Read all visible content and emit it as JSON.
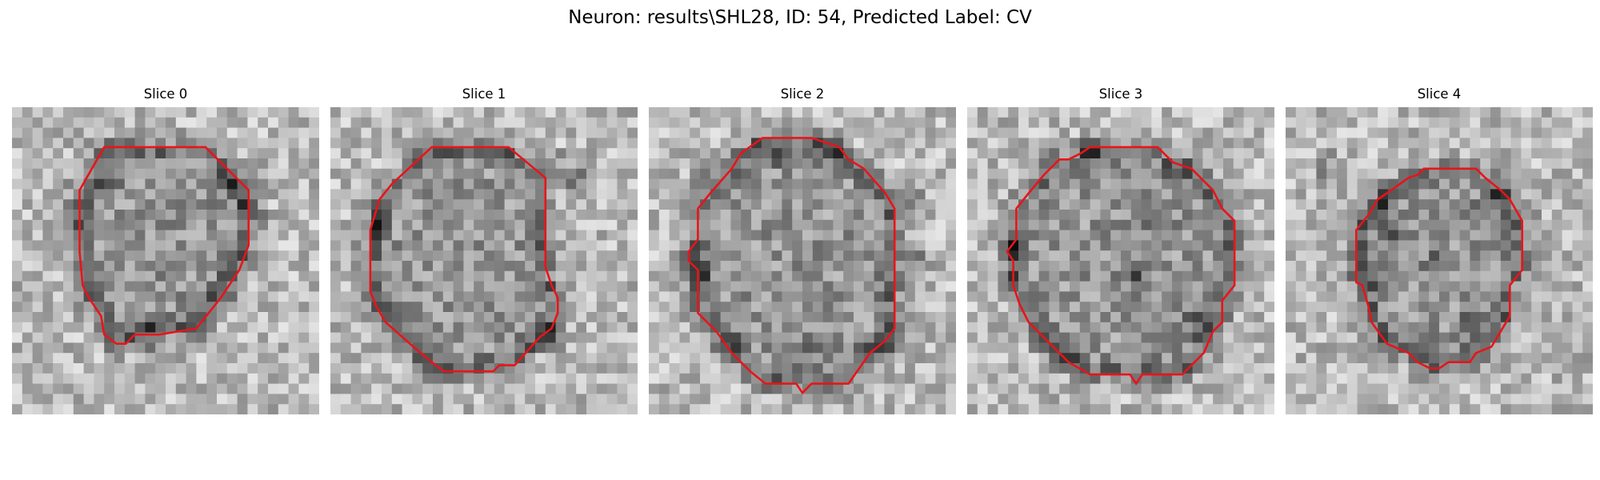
{
  "figure": {
    "title": "Neuron: results\\SHL28, ID: 54, Predicted Label: CV"
  },
  "colors": {
    "contour": "#e8141a"
  },
  "slices": [
    {
      "title": "Slice 0",
      "contour": [
        [
          0.3,
          0.13
        ],
        [
          0.63,
          0.13
        ],
        [
          0.77,
          0.27
        ],
        [
          0.77,
          0.45
        ],
        [
          0.74,
          0.53
        ],
        [
          0.68,
          0.62
        ],
        [
          0.6,
          0.72
        ],
        [
          0.48,
          0.74
        ],
        [
          0.4,
          0.74
        ],
        [
          0.37,
          0.77
        ],
        [
          0.34,
          0.77
        ],
        [
          0.3,
          0.74
        ],
        [
          0.29,
          0.68
        ],
        [
          0.25,
          0.62
        ],
        [
          0.23,
          0.58
        ],
        [
          0.22,
          0.47
        ],
        [
          0.22,
          0.27
        ]
      ],
      "dark_spots": [
        [
          0.22,
          0.35
        ],
        [
          0.78,
          0.33
        ],
        [
          0.7,
          0.25
        ],
        [
          0.3,
          0.26
        ],
        [
          0.25,
          0.6
        ],
        [
          0.68,
          0.6
        ],
        [
          0.45,
          0.74
        ]
      ]
    },
    {
      "title": "Slice 1",
      "contour": [
        [
          0.33,
          0.13
        ],
        [
          0.58,
          0.13
        ],
        [
          0.7,
          0.23
        ],
        [
          0.7,
          0.52
        ],
        [
          0.72,
          0.58
        ],
        [
          0.74,
          0.62
        ],
        [
          0.74,
          0.67
        ],
        [
          0.72,
          0.72
        ],
        [
          0.68,
          0.75
        ],
        [
          0.6,
          0.84
        ],
        [
          0.55,
          0.84
        ],
        [
          0.53,
          0.86
        ],
        [
          0.37,
          0.86
        ],
        [
          0.33,
          0.83
        ],
        [
          0.27,
          0.78
        ],
        [
          0.18,
          0.7
        ],
        [
          0.15,
          0.65
        ],
        [
          0.13,
          0.6
        ],
        [
          0.13,
          0.4
        ],
        [
          0.16,
          0.3
        ],
        [
          0.2,
          0.25
        ]
      ],
      "dark_spots": [
        [
          0.82,
          0.25
        ],
        [
          0.76,
          0.2
        ],
        [
          0.15,
          0.38
        ],
        [
          0.2,
          0.7
        ],
        [
          0.72,
          0.75
        ],
        [
          0.3,
          0.85
        ]
      ]
    },
    {
      "title": "Slice 2",
      "contour": [
        [
          0.37,
          0.1
        ],
        [
          0.53,
          0.1
        ],
        [
          0.62,
          0.13
        ],
        [
          0.65,
          0.17
        ],
        [
          0.7,
          0.2
        ],
        [
          0.77,
          0.28
        ],
        [
          0.8,
          0.33
        ],
        [
          0.8,
          0.72
        ],
        [
          0.77,
          0.76
        ],
        [
          0.72,
          0.8
        ],
        [
          0.65,
          0.9
        ],
        [
          0.53,
          0.9
        ],
        [
          0.5,
          0.93
        ],
        [
          0.48,
          0.9
        ],
        [
          0.38,
          0.9
        ],
        [
          0.33,
          0.86
        ],
        [
          0.27,
          0.8
        ],
        [
          0.22,
          0.73
        ],
        [
          0.16,
          0.67
        ],
        [
          0.16,
          0.53
        ],
        [
          0.13,
          0.5
        ],
        [
          0.13,
          0.47
        ],
        [
          0.16,
          0.43
        ],
        [
          0.16,
          0.33
        ],
        [
          0.2,
          0.28
        ],
        [
          0.27,
          0.2
        ],
        [
          0.3,
          0.15
        ]
      ],
      "dark_spots": [
        [
          0.2,
          0.25
        ],
        [
          0.85,
          0.3
        ],
        [
          0.15,
          0.55
        ],
        [
          0.88,
          0.5
        ],
        [
          0.25,
          0.75
        ],
        [
          0.78,
          0.78
        ],
        [
          0.5,
          0.8
        ],
        [
          0.4,
          0.15
        ],
        [
          0.6,
          0.15
        ]
      ]
    },
    {
      "title": "Slice 3",
      "contour": [
        [
          0.3,
          0.17
        ],
        [
          0.33,
          0.17
        ],
        [
          0.37,
          0.15
        ],
        [
          0.4,
          0.13
        ],
        [
          0.62,
          0.13
        ],
        [
          0.67,
          0.18
        ],
        [
          0.73,
          0.2
        ],
        [
          0.8,
          0.27
        ],
        [
          0.83,
          0.33
        ],
        [
          0.87,
          0.37
        ],
        [
          0.87,
          0.58
        ],
        [
          0.83,
          0.63
        ],
        [
          0.83,
          0.7
        ],
        [
          0.8,
          0.73
        ],
        [
          0.77,
          0.8
        ],
        [
          0.7,
          0.87
        ],
        [
          0.57,
          0.87
        ],
        [
          0.55,
          0.9
        ],
        [
          0.53,
          0.87
        ],
        [
          0.4,
          0.87
        ],
        [
          0.33,
          0.83
        ],
        [
          0.28,
          0.78
        ],
        [
          0.2,
          0.7
        ],
        [
          0.17,
          0.64
        ],
        [
          0.15,
          0.58
        ],
        [
          0.15,
          0.5
        ],
        [
          0.13,
          0.47
        ],
        [
          0.16,
          0.43
        ],
        [
          0.16,
          0.33
        ],
        [
          0.2,
          0.28
        ],
        [
          0.25,
          0.22
        ]
      ],
      "dark_spots": [
        [
          0.4,
          0.15
        ],
        [
          0.7,
          0.2
        ],
        [
          0.15,
          0.45
        ],
        [
          0.87,
          0.42
        ],
        [
          0.25,
          0.75
        ],
        [
          0.33,
          0.82
        ],
        [
          0.75,
          0.7
        ],
        [
          0.62,
          0.4
        ],
        [
          0.55,
          0.55
        ]
      ]
    },
    {
      "title": "Slice 4",
      "contour": [
        [
          0.4,
          0.23
        ],
        [
          0.43,
          0.22
        ],
        [
          0.45,
          0.2
        ],
        [
          0.62,
          0.2
        ],
        [
          0.65,
          0.23
        ],
        [
          0.7,
          0.27
        ],
        [
          0.73,
          0.3
        ],
        [
          0.77,
          0.37
        ],
        [
          0.77,
          0.53
        ],
        [
          0.73,
          0.58
        ],
        [
          0.73,
          0.68
        ],
        [
          0.7,
          0.73
        ],
        [
          0.67,
          0.78
        ],
        [
          0.62,
          0.8
        ],
        [
          0.6,
          0.83
        ],
        [
          0.53,
          0.83
        ],
        [
          0.5,
          0.85
        ],
        [
          0.47,
          0.85
        ],
        [
          0.43,
          0.83
        ],
        [
          0.4,
          0.8
        ],
        [
          0.33,
          0.77
        ],
        [
          0.28,
          0.7
        ],
        [
          0.27,
          0.65
        ],
        [
          0.25,
          0.58
        ],
        [
          0.23,
          0.57
        ],
        [
          0.23,
          0.4
        ],
        [
          0.27,
          0.35
        ],
        [
          0.3,
          0.3
        ],
        [
          0.33,
          0.28
        ]
      ],
      "dark_spots": [
        [
          0.35,
          0.4
        ],
        [
          0.32,
          0.3
        ],
        [
          0.6,
          0.35
        ],
        [
          0.7,
          0.3
        ],
        [
          0.28,
          0.55
        ],
        [
          0.5,
          0.5
        ],
        [
          0.6,
          0.7
        ],
        [
          0.45,
          0.8
        ],
        [
          0.15,
          0.2
        ]
      ]
    }
  ]
}
